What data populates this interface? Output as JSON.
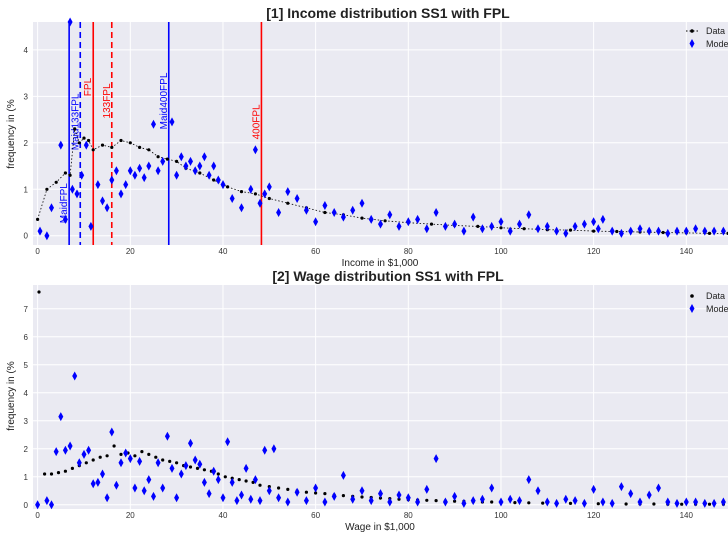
{
  "chart_data": [
    {
      "type": "scatter",
      "title": "[1] Income distribution SS1 with FPL",
      "xlabel": "Income in $1,000",
      "ylabel": "frequency in (%",
      "xlim": [
        -1,
        149
      ],
      "ylim": [
        -0.2,
        4.6
      ],
      "xticks": [
        0,
        20,
        40,
        60,
        80,
        100,
        120,
        140
      ],
      "yticks": [
        0,
        1,
        2,
        3,
        4
      ],
      "grid": true,
      "legend_position": "top-right",
      "legend": [
        {
          "label": "Data",
          "marker": "dot-dotted-line",
          "color": "#000000"
        },
        {
          "label": "Mode",
          "marker": "diamond",
          "color": "#0000ff"
        }
      ],
      "vlines": [
        {
          "x": 6.8,
          "label": "MaidFPL",
          "color": "#0000ff",
          "style": "solid",
          "label_y": 0.7
        },
        {
          "x": 9.2,
          "label": "Maid133FPL",
          "color": "#0000ff",
          "style": "dashed",
          "label_y": 2.45
        },
        {
          "x": 12.0,
          "label": "FPL",
          "color": "#ff0000",
          "style": "solid",
          "label_y": 3.2
        },
        {
          "x": 16.0,
          "label": "133FPL",
          "color": "#ff0000",
          "style": "dashed",
          "label_y": 2.9
        },
        {
          "x": 28.3,
          "label": "Maid400FPL",
          "color": "#0000ff",
          "style": "solid",
          "label_y": 2.9
        },
        {
          "x": 48.3,
          "label": "400FPL",
          "color": "#ff0000",
          "style": "solid",
          "label_y": 2.45
        }
      ],
      "series": [
        {
          "name": "Data",
          "color": "#000000",
          "x": [
            0,
            2,
            4,
            6,
            7,
            8,
            9,
            10,
            11,
            12,
            14,
            16,
            18,
            20,
            22,
            24,
            26,
            28,
            30,
            32,
            35,
            38,
            41,
            44,
            47,
            50,
            54,
            58,
            62,
            66,
            70,
            75,
            80,
            85,
            90,
            95,
            100,
            105,
            110,
            115,
            120,
            125,
            130,
            135,
            140,
            145,
            149
          ],
          "y": [
            0.35,
            1.0,
            1.15,
            1.35,
            1.3,
            2.3,
            2.0,
            2.1,
            2.05,
            1.85,
            1.95,
            1.9,
            2.05,
            2.0,
            1.9,
            1.85,
            1.7,
            1.65,
            1.6,
            1.45,
            1.35,
            1.2,
            1.05,
            0.95,
            0.9,
            0.8,
            0.7,
            0.6,
            0.5,
            0.45,
            0.38,
            0.32,
            0.28,
            0.25,
            0.22,
            0.2,
            0.17,
            0.15,
            0.13,
            0.12,
            0.1,
            0.09,
            0.08,
            0.07,
            0.06,
            0.05,
            0.05
          ]
        },
        {
          "name": "Mode",
          "color": "#0000ff",
          "x": [
            0.5,
            2,
            3,
            5,
            6,
            7,
            7.5,
            8.5,
            9.5,
            10.5,
            11.5,
            13,
            14,
            15,
            16,
            17,
            18,
            19,
            20,
            21,
            22,
            23,
            24,
            25,
            26,
            27,
            29,
            30,
            31,
            32,
            33,
            34,
            35,
            36,
            37,
            38,
            39,
            40,
            42,
            44,
            46,
            47,
            48,
            49,
            50,
            52,
            54,
            56,
            58,
            60,
            62,
            64,
            66,
            68,
            70,
            72,
            74,
            76,
            78,
            80,
            82,
            84,
            86,
            88,
            90,
            92,
            94,
            96,
            98,
            100,
            102,
            104,
            106,
            108,
            110,
            112,
            114,
            116,
            118,
            120,
            121,
            122,
            124,
            126,
            128,
            130,
            132,
            134,
            136,
            138,
            140,
            142,
            144,
            146,
            148
          ],
          "y": [
            0.1,
            0.0,
            0.6,
            1.95,
            0.35,
            4.6,
            1.0,
            0.9,
            1.3,
            1.95,
            0.2,
            1.1,
            0.75,
            0.6,
            1.2,
            1.4,
            0.9,
            1.1,
            1.4,
            1.3,
            1.45,
            1.25,
            1.5,
            2.4,
            1.4,
            1.6,
            2.45,
            1.3,
            1.7,
            1.5,
            1.6,
            1.4,
            1.5,
            1.7,
            1.3,
            1.5,
            1.2,
            1.1,
            0.8,
            0.6,
            1.0,
            1.85,
            0.7,
            0.9,
            1.05,
            0.5,
            0.95,
            0.8,
            0.55,
            0.3,
            0.65,
            0.5,
            0.4,
            0.55,
            0.7,
            0.35,
            0.25,
            0.45,
            0.2,
            0.3,
            0.35,
            0.15,
            0.5,
            0.2,
            0.25,
            0.1,
            0.4,
            0.15,
            0.2,
            0.3,
            0.1,
            0.25,
            0.45,
            0.15,
            0.2,
            0.1,
            0.05,
            0.2,
            0.25,
            0.3,
            0.15,
            0.35,
            0.1,
            0.05,
            0.1,
            0.15,
            0.1,
            0.1,
            0.05,
            0.1,
            0.1,
            0.15,
            0.1,
            0.1,
            0.1
          ]
        }
      ]
    },
    {
      "type": "scatter",
      "title": "[2] Wage distribution SS1 with FPL",
      "xlabel": "Wage in $1,000",
      "ylabel": "frequency in (%",
      "xlim": [
        -1,
        149
      ],
      "ylim": [
        -0.15,
        7.85
      ],
      "xticks": [
        0,
        20,
        40,
        60,
        80,
        100,
        120,
        140
      ],
      "yticks": [
        0,
        1,
        2,
        3,
        4,
        5,
        6,
        7
      ],
      "grid": true,
      "legend_position": "top-right",
      "legend": [
        {
          "label": "Data",
          "marker": "dot",
          "color": "#000000"
        },
        {
          "label": "Mode",
          "marker": "diamond",
          "color": "#0000ff"
        }
      ],
      "series": [
        {
          "name": "Data",
          "color": "#000000",
          "x": [
            0.3,
            1.5,
            3,
            4.5,
            6,
            7.5,
            9,
            10.5,
            12,
            13.5,
            15,
            16.5,
            18,
            19.5,
            21,
            22.5,
            24,
            25.5,
            27,
            28.5,
            30,
            31.5,
            33,
            34.5,
            36,
            37.5,
            39,
            40.5,
            42,
            43.5,
            45,
            46.5,
            48,
            50,
            52,
            54,
            56,
            58,
            60,
            62,
            64,
            66,
            68,
            70,
            72,
            74,
            76,
            78,
            80,
            82,
            84,
            86,
            88,
            90,
            92,
            94,
            96,
            98,
            100,
            103,
            106,
            109,
            112,
            115,
            118,
            121,
            124,
            127,
            130,
            133,
            136,
            139,
            142,
            145,
            148
          ],
          "y": [
            7.6,
            1.1,
            1.1,
            1.15,
            1.2,
            1.3,
            1.4,
            1.5,
            1.6,
            1.7,
            1.75,
            2.1,
            1.8,
            1.85,
            1.75,
            1.9,
            1.8,
            1.7,
            1.6,
            1.55,
            1.5,
            1.4,
            1.35,
            1.3,
            1.25,
            1.2,
            1.1,
            1.0,
            0.95,
            0.9,
            0.85,
            0.8,
            0.7,
            0.65,
            0.6,
            0.55,
            0.5,
            0.45,
            0.42,
            0.4,
            0.35,
            0.33,
            0.3,
            0.28,
            0.26,
            0.24,
            0.22,
            0.2,
            0.18,
            0.17,
            0.16,
            0.15,
            0.14,
            0.13,
            0.12,
            0.11,
            0.1,
            0.1,
            0.09,
            0.08,
            0.07,
            0.06,
            0.06,
            0.05,
            0.05,
            0.04,
            0.04,
            0.03,
            0.03,
            0.03,
            0.02,
            0.02,
            0.02,
            0.02,
            0.02
          ]
        },
        {
          "name": "Mode",
          "color": "#0000ff",
          "x": [
            0,
            2,
            3,
            4,
            5,
            6,
            7,
            8,
            9,
            10,
            11,
            12,
            13,
            14,
            15,
            16,
            17,
            18,
            19,
            20,
            21,
            22,
            23,
            24,
            25,
            26,
            27,
            28,
            29,
            30,
            31,
            32,
            33,
            34,
            35,
            36,
            37,
            38,
            39,
            40,
            41,
            42,
            43,
            44,
            45,
            46,
            47,
            48,
            49,
            50,
            51,
            52,
            54,
            56,
            58,
            60,
            62,
            64,
            66,
            68,
            70,
            72,
            74,
            76,
            78,
            80,
            82,
            84,
            86,
            88,
            90,
            92,
            94,
            96,
            98,
            100,
            102,
            104,
            106,
            108,
            110,
            112,
            114,
            116,
            118,
            120,
            122,
            124,
            126,
            128,
            130,
            132,
            134,
            136,
            138,
            140,
            142,
            144,
            146,
            148
          ],
          "y": [
            0.0,
            0.15,
            0.0,
            1.9,
            3.15,
            1.95,
            2.1,
            4.6,
            1.5,
            1.8,
            1.95,
            0.75,
            0.8,
            1.1,
            0.25,
            2.6,
            0.7,
            1.5,
            1.85,
            1.65,
            0.6,
            1.55,
            0.5,
            0.9,
            0.3,
            1.5,
            0.6,
            2.45,
            1.3,
            0.25,
            1.1,
            1.4,
            2.2,
            1.6,
            1.45,
            0.8,
            0.4,
            1.2,
            0.9,
            0.25,
            2.25,
            0.8,
            0.15,
            0.35,
            1.3,
            0.2,
            0.9,
            0.15,
            1.95,
            0.5,
            2.0,
            0.25,
            0.1,
            0.45,
            0.15,
            0.6,
            0.1,
            0.3,
            1.05,
            0.2,
            0.5,
            0.15,
            0.4,
            0.1,
            0.35,
            0.25,
            0.1,
            0.55,
            1.65,
            0.1,
            0.3,
            0.05,
            0.15,
            0.2,
            0.6,
            0.1,
            0.2,
            0.15,
            0.9,
            0.5,
            0.1,
            0.05,
            0.2,
            0.15,
            0.05,
            0.55,
            0.1,
            0.05,
            0.65,
            0.4,
            0.1,
            0.35,
            0.6,
            0.1,
            0.05,
            0.1,
            0.1,
            0.05,
            0.05,
            0.1
          ]
        }
      ]
    }
  ]
}
